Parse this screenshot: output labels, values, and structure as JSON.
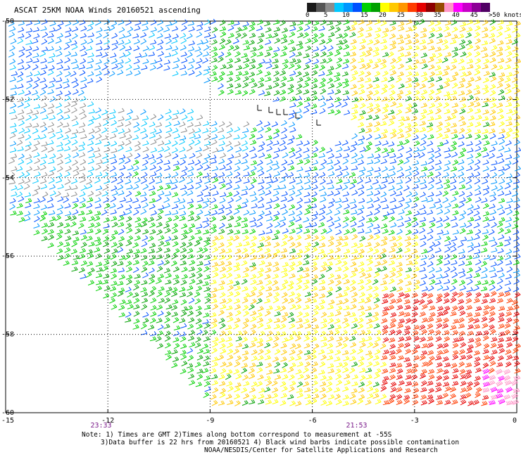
{
  "header": {
    "title": "ASCAT 25KM NOAA Winds 20160521 ascending"
  },
  "legend": {
    "colors": [
      "#1a1a1a",
      "#555555",
      "#8c8c8c",
      "#00c8ff",
      "#0096ff",
      "#0050ff",
      "#00d000",
      "#00a000",
      "#ffff00",
      "#ffc800",
      "#ff9600",
      "#ff3c00",
      "#e60000",
      "#8c0000",
      "#964b00",
      "#ff96c8",
      "#ff00ff",
      "#c800c8",
      "#8c0096",
      "#500064"
    ],
    "labels": [
      "0",
      "5",
      "10",
      "15",
      "20",
      "25",
      "30",
      "35",
      "40",
      "45",
      ">50 knots"
    ]
  },
  "axes": {
    "lat_labels": [
      "-50",
      "-52",
      "-54",
      "-56",
      "-58",
      "-60"
    ],
    "lon_labels": [
      "-15",
      "-12",
      "-9",
      "-6",
      "-3",
      "0"
    ],
    "time_labels": [
      "23:33",
      "21:53"
    ]
  },
  "notes": {
    "line1": "Note: 1) Times are GMT 2)Times along bottom correspond to measurement at -55S",
    "line2": "3)Data buffer is 22 hrs from 20160521 4) Black wind barbs indicate possible contamination",
    "line3": "NOAA/NESDIS/Center for Satellite Applications and Research"
  },
  "chart_data": {
    "type": "map",
    "title": "ASCAT 25KM NOAA Winds 20160521 ascending",
    "lat_range": [
      -60,
      -50
    ],
    "lon_range": [
      -15,
      0
    ],
    "lat_ticks": [
      -50,
      -52,
      -54,
      -56,
      -58,
      -60
    ],
    "lon_ticks": [
      -15,
      -12,
      -9,
      -6,
      -3,
      0
    ],
    "grid": true,
    "legend_unit": "knots",
    "legend_scale": [
      0,
      5,
      10,
      15,
      20,
      25,
      30,
      35,
      40,
      45,
      50
    ],
    "time_markers": [
      {
        "label": "23:33",
        "lon": -12.2
      },
      {
        "label": "21:53",
        "lon": -4.7
      }
    ],
    "wind_regions": [
      {
        "region": "northwest",
        "lat": [
          -52,
          -50
        ],
        "lon": [
          -15,
          -9
        ],
        "speed_knots": 12
      },
      {
        "region": "west-central",
        "lat": [
          -54.5,
          -52
        ],
        "lon": [
          -15,
          -8
        ],
        "speed_knots": 8
      },
      {
        "region": "central band",
        "lat": [
          -55,
          -53.5
        ],
        "lon": [
          -12,
          0
        ],
        "speed_knots": 13
      },
      {
        "region": "north-central",
        "lat": [
          -52,
          -50
        ],
        "lon": [
          -9,
          -5
        ],
        "speed_knots": 17
      },
      {
        "region": "northeast",
        "lat": [
          -53,
          -50
        ],
        "lon": [
          -5,
          0
        ],
        "speed_knots": 22
      },
      {
        "region": "southwest",
        "lat": [
          -60,
          -55
        ],
        "lon": [
          -14,
          -8
        ],
        "speed_knots": 17
      },
      {
        "region": "south-central",
        "lat": [
          -60,
          -55.5
        ],
        "lon": [
          -9,
          -3
        ],
        "speed_knots": 22
      },
      {
        "region": "southeast",
        "lat": [
          -60,
          -57
        ],
        "lon": [
          -4,
          0
        ],
        "speed_knots": 30
      },
      {
        "region": "far southeast",
        "lat": [
          -60,
          -59
        ],
        "lon": [
          -1,
          0
        ],
        "speed_knots": 40
      }
    ]
  }
}
